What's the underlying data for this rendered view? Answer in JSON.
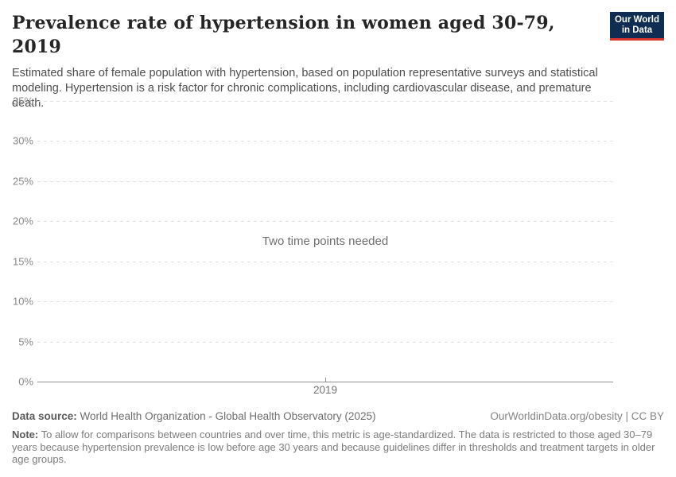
{
  "header": {
    "title": "Prevalence rate of hypertension in women aged 30-79, 2019",
    "subtitle": "Estimated share of female population with hypertension, based on population representative surveys and statistical modeling. Hypertension is a risk factor for chronic complications, including cardiovascular disease, and premature death.",
    "logo": {
      "line1": "Our World",
      "line2": "in Data"
    }
  },
  "chart_data": {
    "type": "line",
    "title": "Prevalence rate of hypertension in women aged 30-79, 2019",
    "series": [],
    "empty_message": "Two time points needed",
    "x_axis": {
      "ticks": [
        {
          "label": "2019",
          "pos": 50
        }
      ]
    },
    "y_axis": {
      "min": 0,
      "max": 35,
      "unit": "%",
      "ticks": [
        {
          "label": "0%",
          "value": 0
        },
        {
          "label": "5%",
          "value": 5
        },
        {
          "label": "10%",
          "value": 10
        },
        {
          "label": "15%",
          "value": 15
        },
        {
          "label": "20%",
          "value": 20
        },
        {
          "label": "25%",
          "value": 25
        },
        {
          "label": "30%",
          "value": 30
        },
        {
          "label": "35%",
          "value": 35
        }
      ]
    },
    "grid": "horizontal-dashed",
    "legend": "none"
  },
  "footer": {
    "datasource_label": "Data source:",
    "datasource_text": " World Health Organization - Global Health Observatory (2025)",
    "rights": "OurWorldinData.org/obesity | CC BY",
    "note_label": "Note:",
    "note_text": " To allow for comparisons between countries and over time, this metric is age-standardized. The data is restricted to those aged 30–79 years because hypertension prevalence is low before age 30 years and because guidelines differ in thresholds and treatment targets in older age groups."
  },
  "colors": {
    "logo_bg": "#0f2d52",
    "logo_stripe": "#d8352e",
    "gridline": "#e2e2e2",
    "axis_line": "#8f8f8f",
    "title_text": "#252525",
    "subtitle_text": "#4e4e4e",
    "muted_text": "#6e6e6e"
  }
}
